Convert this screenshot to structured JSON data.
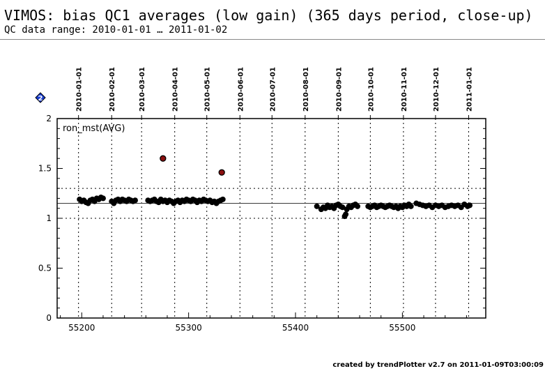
{
  "header": {
    "title": "VIMOS: bias QC1 averages (low gain) (365 days period, close-up)",
    "subtitle": "QC data range: 2010-01-01 … 2011-01-02"
  },
  "footer": {
    "credit": "created by trendPlotter v2.7 on 2011-01-09T03:00:09"
  },
  "badge": {
    "label": "2",
    "color": "#1a3fd0",
    "icon": "diamond-icon"
  },
  "chart_data": {
    "type": "scatter",
    "panel_label": "ron_mst(AVG)",
    "xlim": [
      55177,
      55578
    ],
    "ylim": [
      0,
      2
    ],
    "x_ticks": [
      55200,
      55300,
      55400,
      55500
    ],
    "y_ticks": [
      "0",
      "0.5",
      "1",
      "1.5",
      "2"
    ],
    "y_tick_values": [
      0,
      0.5,
      1,
      1.5,
      2
    ],
    "date_ticks": [
      {
        "label": "2010-01-01",
        "mjd": 55197
      },
      {
        "label": "2010-02-01",
        "mjd": 55228
      },
      {
        "label": "2010-03-01",
        "mjd": 55256
      },
      {
        "label": "2010-04-01",
        "mjd": 55287
      },
      {
        "label": "2010-05-01",
        "mjd": 55317
      },
      {
        "label": "2010-06-01",
        "mjd": 55348
      },
      {
        "label": "2010-07-01",
        "mjd": 55378
      },
      {
        "label": "2010-08-01",
        "mjd": 55409
      },
      {
        "label": "2010-09-01",
        "mjd": 55440
      },
      {
        "label": "2010-10-01",
        "mjd": 55470
      },
      {
        "label": "2010-11-01",
        "mjd": 55501
      },
      {
        "label": "2010-12-01",
        "mjd": 55531
      },
      {
        "label": "2011-01-01",
        "mjd": 55562
      }
    ],
    "reference_lines": {
      "mean": 1.15,
      "upper": 1.3,
      "lower": 1.0
    },
    "colors": {
      "point": "#000000",
      "outlier": "#8b1010",
      "outlier_edge": "#000000"
    },
    "series": [
      {
        "values": [
          [
            55198,
            1.19
          ],
          [
            55200,
            1.17
          ],
          [
            55202,
            1.18
          ],
          [
            55204,
            1.16
          ],
          [
            55206,
            1.15
          ],
          [
            55208,
            1.18
          ],
          [
            55210,
            1.19
          ],
          [
            55212,
            1.17
          ],
          [
            55214,
            1.2
          ],
          [
            55216,
            1.19
          ],
          [
            55218,
            1.21
          ],
          [
            55220,
            1.2
          ],
          [
            55228,
            1.17
          ],
          [
            55230,
            1.15
          ],
          [
            55232,
            1.18
          ],
          [
            55234,
            1.19
          ],
          [
            55236,
            1.17
          ],
          [
            55238,
            1.19
          ],
          [
            55240,
            1.18
          ],
          [
            55242,
            1.17
          ],
          [
            55244,
            1.19
          ],
          [
            55246,
            1.18
          ],
          [
            55248,
            1.17
          ],
          [
            55250,
            1.18
          ],
          [
            55262,
            1.18
          ],
          [
            55264,
            1.17
          ],
          [
            55266,
            1.18
          ],
          [
            55268,
            1.19
          ],
          [
            55270,
            1.17
          ],
          [
            55272,
            1.16
          ],
          [
            55274,
            1.19
          ],
          [
            55276,
            1.17
          ],
          [
            55278,
            1.18
          ],
          [
            55280,
            1.16
          ],
          [
            55282,
            1.18
          ],
          [
            55284,
            1.17
          ],
          [
            55286,
            1.15
          ],
          [
            55288,
            1.17
          ],
          [
            55290,
            1.18
          ],
          [
            55292,
            1.16
          ],
          [
            55294,
            1.18
          ],
          [
            55296,
            1.17
          ],
          [
            55298,
            1.19
          ],
          [
            55300,
            1.18
          ],
          [
            55302,
            1.17
          ],
          [
            55304,
            1.19
          ],
          [
            55306,
            1.18
          ],
          [
            55308,
            1.16
          ],
          [
            55310,
            1.18
          ],
          [
            55312,
            1.17
          ],
          [
            55314,
            1.19
          ],
          [
            55316,
            1.18
          ],
          [
            55318,
            1.17
          ],
          [
            55320,
            1.18
          ],
          [
            55322,
            1.16
          ],
          [
            55324,
            1.17
          ],
          [
            55326,
            1.15
          ],
          [
            55328,
            1.17
          ],
          [
            55330,
            1.18
          ],
          [
            55332,
            1.19
          ],
          [
            55420,
            1.12
          ],
          [
            55424,
            1.09
          ],
          [
            55426,
            1.11
          ],
          [
            55428,
            1.1
          ],
          [
            55430,
            1.13
          ],
          [
            55432,
            1.11
          ],
          [
            55434,
            1.12
          ],
          [
            55436,
            1.1
          ],
          [
            55438,
            1.13
          ],
          [
            55440,
            1.14
          ],
          [
            55442,
            1.12
          ],
          [
            55444,
            1.11
          ],
          [
            55446,
            1.02
          ],
          [
            55447,
            1.04
          ],
          [
            55448,
            1.09
          ],
          [
            55450,
            1.12
          ],
          [
            55452,
            1.11
          ],
          [
            55454,
            1.13
          ],
          [
            55456,
            1.14
          ],
          [
            55458,
            1.12
          ],
          [
            55468,
            1.12
          ],
          [
            55470,
            1.11
          ],
          [
            55472,
            1.12
          ],
          [
            55474,
            1.13
          ],
          [
            55476,
            1.11
          ],
          [
            55478,
            1.12
          ],
          [
            55480,
            1.13
          ],
          [
            55482,
            1.12
          ],
          [
            55484,
            1.11
          ],
          [
            55486,
            1.12
          ],
          [
            55488,
            1.13
          ],
          [
            55490,
            1.12
          ],
          [
            55492,
            1.11
          ],
          [
            55494,
            1.12
          ],
          [
            55496,
            1.1
          ],
          [
            55498,
            1.12
          ],
          [
            55500,
            1.11
          ],
          [
            55502,
            1.13
          ],
          [
            55504,
            1.12
          ],
          [
            55506,
            1.14
          ],
          [
            55508,
            1.12
          ],
          [
            55513,
            1.15
          ],
          [
            55516,
            1.14
          ],
          [
            55519,
            1.13
          ],
          [
            55522,
            1.12
          ],
          [
            55525,
            1.13
          ],
          [
            55528,
            1.11
          ],
          [
            55531,
            1.13
          ],
          [
            55534,
            1.12
          ],
          [
            55537,
            1.13
          ],
          [
            55540,
            1.11
          ],
          [
            55543,
            1.12
          ],
          [
            55546,
            1.13
          ],
          [
            55549,
            1.12
          ],
          [
            55552,
            1.13
          ],
          [
            55555,
            1.11
          ],
          [
            55558,
            1.14
          ],
          [
            55561,
            1.12
          ],
          [
            55563,
            1.13
          ]
        ]
      },
      {
        "values": [
          [
            55276,
            1.6
          ],
          [
            55331,
            1.46
          ]
        ]
      }
    ]
  }
}
